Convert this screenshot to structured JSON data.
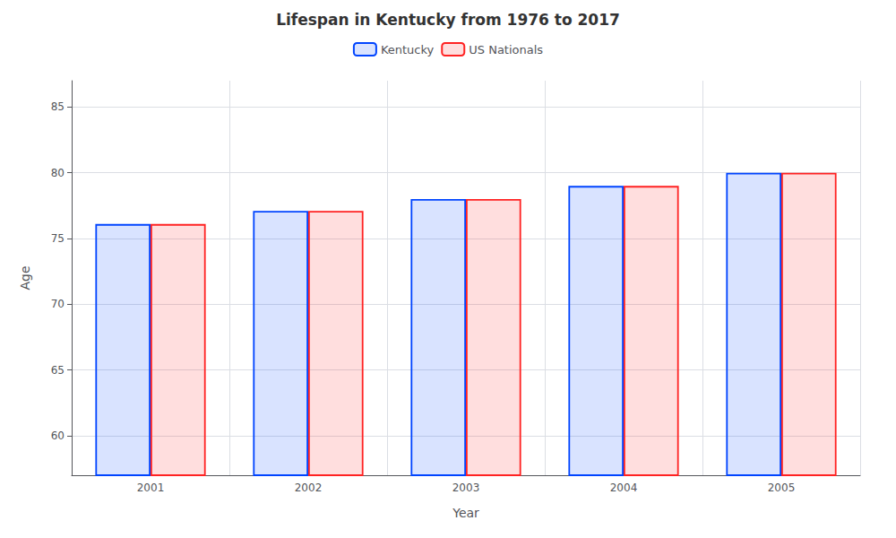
{
  "chart_data": {
    "type": "bar",
    "title": "Lifespan in Kentucky from 1976 to 2017",
    "xlabel": "Year",
    "ylabel": "Age",
    "categories": [
      "2001",
      "2002",
      "2003",
      "2004",
      "2005"
    ],
    "series": [
      {
        "name": "Kentucky",
        "color": "#0044ff",
        "values": [
          76.1,
          77.1,
          78.0,
          79.0,
          80.0
        ]
      },
      {
        "name": "US Nationals",
        "color": "#ff2222",
        "values": [
          76.1,
          77.1,
          78.0,
          79.0,
          80.0
        ]
      }
    ],
    "ylim": [
      57,
      87
    ],
    "yticks": [
      60,
      65,
      70,
      75,
      80,
      85
    ],
    "grid": true,
    "legend": "top"
  }
}
